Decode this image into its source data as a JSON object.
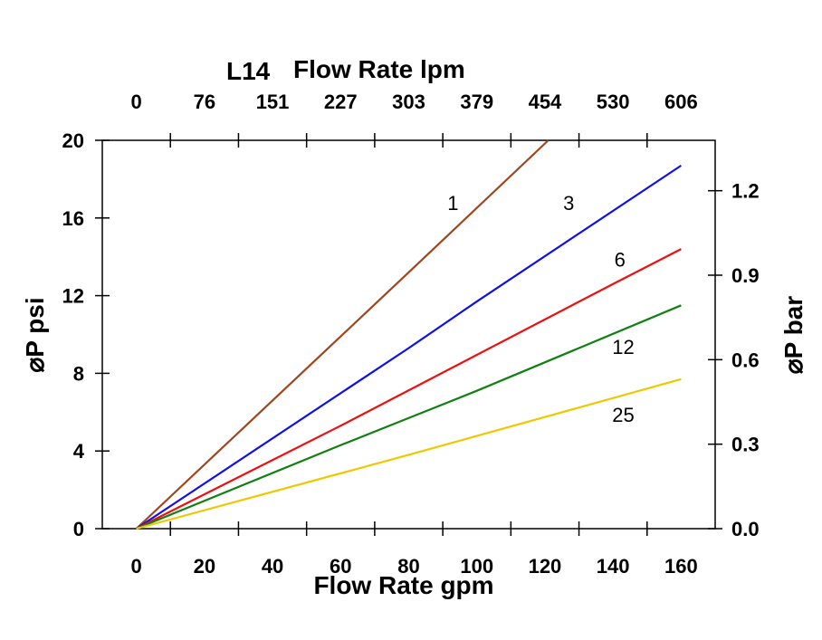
{
  "chart_data": {
    "type": "line",
    "title": "L14",
    "xlabel": "Flow Rate gpm",
    "ylabel": "⌀P psi",
    "x2label": "Flow Rate lpm",
    "y2label": "⌀P bar",
    "xlim": [
      -10,
      170
    ],
    "ylim": [
      0,
      20
    ],
    "xticks": [
      "0",
      "20",
      "40",
      "60",
      "80",
      "100",
      "120",
      "140",
      "160"
    ],
    "xtick_values": [
      0,
      20,
      40,
      60,
      80,
      100,
      120,
      140,
      160
    ],
    "x2ticks": [
      "0",
      "76",
      "151",
      "227",
      "303",
      "379",
      "454",
      "530",
      "606"
    ],
    "yticks": [
      "0",
      "4",
      "8",
      "12",
      "16",
      "20"
    ],
    "ytick_values": [
      0,
      4,
      8,
      12,
      16,
      20
    ],
    "y2ticks": [
      "0.0",
      "0.3",
      "0.6",
      "0.9",
      "1.2"
    ],
    "y2tick_values": [
      0,
      0.3,
      0.6,
      0.9,
      1.2
    ],
    "grid": false,
    "series": [
      {
        "name": "1",
        "color": "#a0461e",
        "points": [
          [
            0,
            0
          ],
          [
            40,
            6.6
          ],
          [
            80,
            13.2
          ],
          [
            121,
            20
          ]
        ]
      },
      {
        "name": "3",
        "color": "#1010ee",
        "points": [
          [
            0,
            0
          ],
          [
            80,
            9.3
          ],
          [
            100,
            11.7
          ],
          [
            160,
            18.7
          ]
        ]
      },
      {
        "name": "6",
        "color": "#ee1010",
        "points": [
          [
            0,
            0
          ],
          [
            60,
            5.3
          ],
          [
            140,
            12.6
          ],
          [
            160,
            14.4
          ]
        ]
      },
      {
        "name": "12",
        "color": "#108010",
        "points": [
          [
            0,
            0
          ],
          [
            60,
            4.3
          ],
          [
            80,
            5.7
          ],
          [
            100,
            7.1
          ],
          [
            160,
            11.5
          ]
        ]
      },
      {
        "name": "25",
        "color": "#f0c800",
        "points": [
          [
            0,
            0
          ],
          [
            80,
            3.8
          ],
          [
            160,
            7.7
          ]
        ]
      }
    ],
    "series_label_positions": [
      [
        93,
        16.4
      ],
      [
        127,
        16.4
      ],
      [
        142,
        13.5
      ],
      [
        143,
        9.0
      ],
      [
        143,
        5.5
      ]
    ]
  }
}
